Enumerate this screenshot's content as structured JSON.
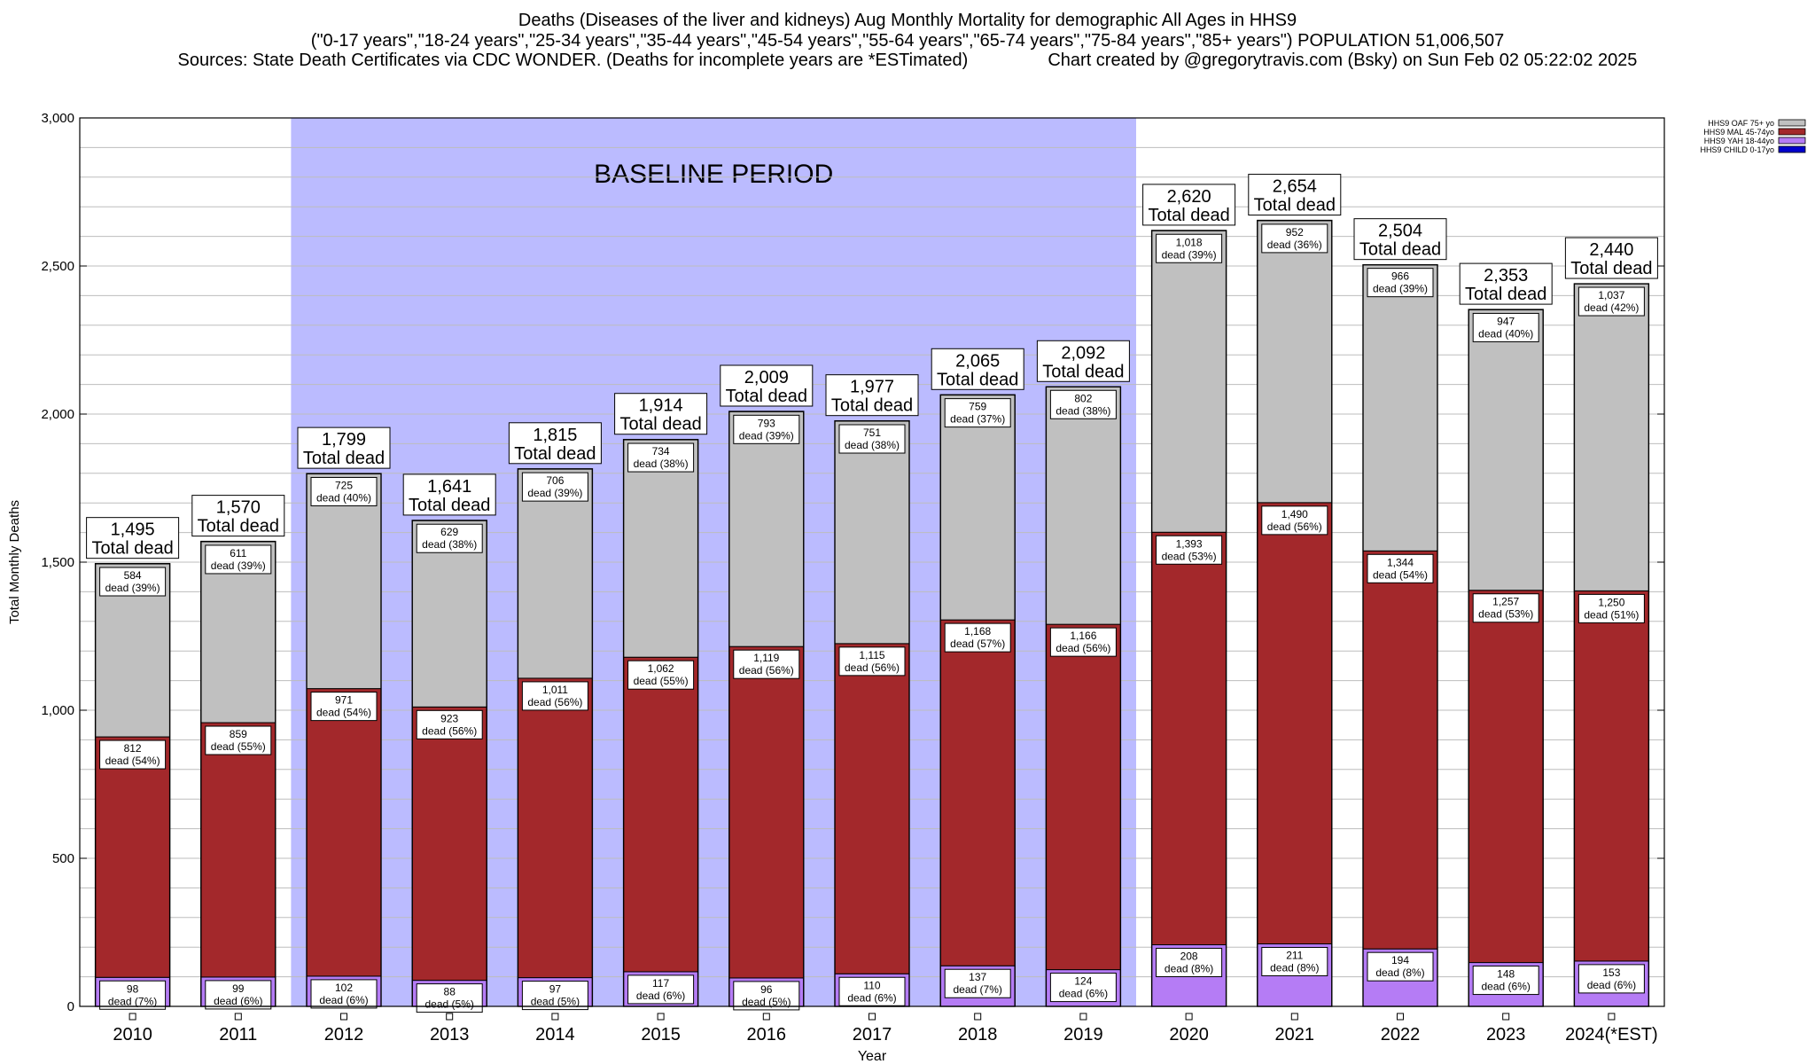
{
  "chart_data": {
    "type": "bar",
    "stacked": true,
    "title_lines": [
      "Deaths (Diseases of the liver and kidneys) Aug Monthly Mortality for demographic All Ages in HHS9",
      "(\"0-17 years\",\"18-24 years\",\"25-34 years\",\"35-44 years\",\"45-54 years\",\"55-64 years\",\"65-74 years\",\"75-84 years\",\"85+ years\") POPULATION 51,006,507"
    ],
    "source_text": "Sources: State Death Certificates via CDC WONDER. (Deaths for incomplete years are *ESTimated)",
    "credit_text": "Chart created by @gregorytravis.com (Bsky) on Sun Feb 02 05:22:02 2025",
    "xlabel": "Year",
    "ylabel": "Total Monthly Deaths",
    "ylim": [
      0,
      3000
    ],
    "yticks": [
      0,
      500,
      1000,
      1500,
      2000,
      2500,
      3000
    ],
    "ytick_labels": [
      "0",
      "500",
      "1,000",
      "1,500",
      "2,000",
      "2,500",
      "3,000"
    ],
    "grid": true,
    "legend_position": "top-right",
    "baseline_label": "BASELINE PERIOD",
    "baseline_categories": [
      "2012",
      "2019"
    ],
    "total_suffix": "Total dead",
    "categories": [
      "2010",
      "2011",
      "2012",
      "2013",
      "2014",
      "2015",
      "2016",
      "2017",
      "2018",
      "2019",
      "2020",
      "2021",
      "2022",
      "2023",
      "2024(*EST)"
    ],
    "totals": [
      1495,
      1570,
      1799,
      1641,
      1815,
      1914,
      2009,
      1977,
      2065,
      2092,
      2620,
      2654,
      2504,
      2353,
      2440
    ],
    "total_labels": [
      "1,495",
      "1,570",
      "1,799",
      "1,641",
      "1,815",
      "1,914",
      "2,009",
      "1,977",
      "2,065",
      "2,092",
      "2,620",
      "2,654",
      "2,504",
      "2,353",
      "2,440"
    ],
    "series": [
      {
        "name": "HHS9 CHILD 0-17yo",
        "color": "#0000cc",
        "values": [
          0,
          0,
          0,
          0,
          0,
          0,
          0,
          0,
          0,
          0,
          0,
          0,
          0,
          0,
          0
        ]
      },
      {
        "name": "HHS9 YAH 18-44yo",
        "color": "#b57cf5",
        "values": [
          98,
          99,
          102,
          88,
          97,
          117,
          96,
          110,
          137,
          124,
          208,
          211,
          194,
          148,
          153
        ],
        "value_labels": [
          "98",
          "99",
          "102",
          "88",
          "97",
          "117",
          "96",
          "110",
          "137",
          "124",
          "208",
          "211",
          "194",
          "148",
          "153"
        ],
        "pct_labels": [
          "dead (7%)",
          "dead (6%)",
          "dead (6%)",
          "dead (5%)",
          "dead (5%)",
          "dead (6%)",
          "dead (5%)",
          "dead (6%)",
          "dead (7%)",
          "dead (6%)",
          "dead (8%)",
          "dead (8%)",
          "dead (8%)",
          "dead (6%)",
          "dead (6%)"
        ]
      },
      {
        "name": "HHS9 MAL 45-74yo",
        "color": "#a3282b",
        "values": [
          812,
          859,
          971,
          923,
          1011,
          1062,
          1119,
          1115,
          1168,
          1166,
          1393,
          1490,
          1344,
          1257,
          1250
        ],
        "value_labels": [
          "812",
          "859",
          "971",
          "923",
          "1,011",
          "1,062",
          "1,119",
          "1,115",
          "1,168",
          "1,166",
          "1,393",
          "1,490",
          "1,344",
          "1,257",
          "1,250"
        ],
        "pct_labels": [
          "dead (54%)",
          "dead (55%)",
          "dead (54%)",
          "dead (56%)",
          "dead (56%)",
          "dead (55%)",
          "dead (56%)",
          "dead (56%)",
          "dead (57%)",
          "dead (56%)",
          "dead (53%)",
          "dead (56%)",
          "dead (54%)",
          "dead (53%)",
          "dead (51%)"
        ]
      },
      {
        "name": "HHS9 OAF 75+ yo",
        "color": "#c0c0c0",
        "values": [
          584,
          611,
          725,
          629,
          706,
          734,
          793,
          751,
          759,
          802,
          1018,
          952,
          966,
          947,
          1037
        ],
        "value_labels": [
          "584",
          "611",
          "725",
          "629",
          "706",
          "734",
          "793",
          "751",
          "759",
          "802",
          "1,018",
          "952",
          "966",
          "947",
          "1,037"
        ],
        "pct_labels": [
          "dead (39%)",
          "dead (39%)",
          "dead (40%)",
          "dead (38%)",
          "dead (39%)",
          "dead (38%)",
          "dead (39%)",
          "dead (38%)",
          "dead (37%)",
          "dead (38%)",
          "dead (39%)",
          "dead (36%)",
          "dead (39%)",
          "dead (40%)",
          "dead (42%)"
        ]
      }
    ],
    "legend_order": [
      "HHS9 OAF 75+ yo",
      "HHS9 MAL 45-74yo",
      "HHS9 YAH 18-44yo",
      "HHS9 CHILD 0-17yo"
    ],
    "colors": {
      "baseline_band": "#bbbbff",
      "grid": "#bdbdbd",
      "axis": "#000000"
    }
  }
}
